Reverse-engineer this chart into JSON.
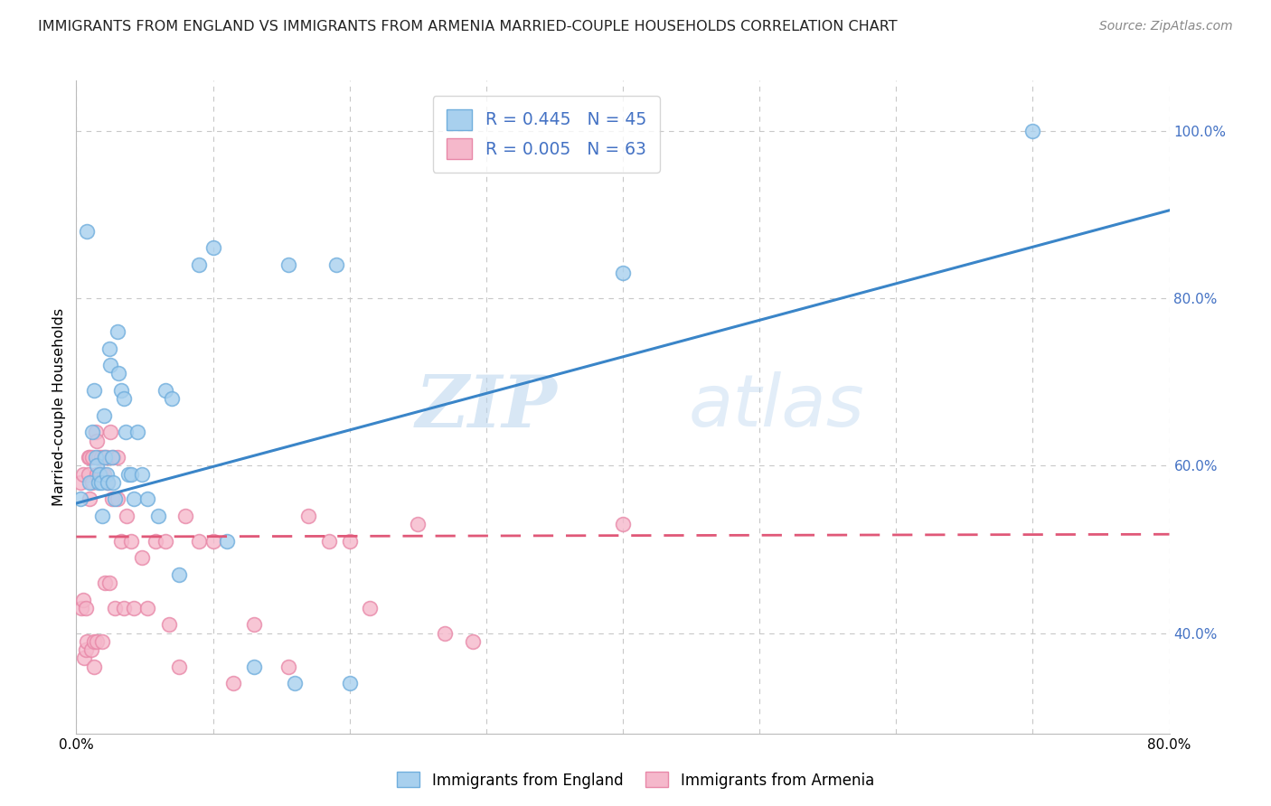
{
  "title": "IMMIGRANTS FROM ENGLAND VS IMMIGRANTS FROM ARMENIA MARRIED-COUPLE HOUSEHOLDS CORRELATION CHART",
  "source": "Source: ZipAtlas.com",
  "ylabel": "Married-couple Households",
  "xlim": [
    0.0,
    0.8
  ],
  "ylim": [
    0.28,
    1.06
  ],
  "xticks": [
    0.0,
    0.1,
    0.2,
    0.3,
    0.4,
    0.5,
    0.6,
    0.7,
    0.8
  ],
  "xticklabels": [
    "0.0%",
    "",
    "",
    "",
    "",
    "",
    "",
    "",
    "80.0%"
  ],
  "yticks": [
    0.4,
    0.6,
    0.8,
    1.0
  ],
  "yticklabels": [
    "40.0%",
    "60.0%",
    "80.0%",
    "100.0%"
  ],
  "england_color": "#A8D0EE",
  "england_edge": "#70AEDD",
  "armenia_color": "#F5B8CB",
  "armenia_edge": "#E888A8",
  "england_line_color": "#3A85C8",
  "armenia_line_color": "#E05878",
  "R_england": 0.445,
  "N_england": 45,
  "R_armenia": 0.005,
  "N_armenia": 63,
  "watermark_zip": "ZIP",
  "watermark_atlas": "atlas",
  "eng_line_x0": 0.0,
  "eng_line_y0": 0.555,
  "eng_line_x1": 0.8,
  "eng_line_y1": 0.905,
  "arm_line_x0": 0.0,
  "arm_line_y0": 0.515,
  "arm_line_x1": 0.8,
  "arm_line_y1": 0.518,
  "england_x": [
    0.003,
    0.008,
    0.01,
    0.012,
    0.013,
    0.014,
    0.015,
    0.016,
    0.017,
    0.018,
    0.019,
    0.02,
    0.021,
    0.022,
    0.023,
    0.024,
    0.025,
    0.026,
    0.027,
    0.028,
    0.03,
    0.031,
    0.033,
    0.035,
    0.036,
    0.038,
    0.04,
    0.042,
    0.045,
    0.048,
    0.052,
    0.06,
    0.065,
    0.07,
    0.075,
    0.09,
    0.1,
    0.11,
    0.13,
    0.155,
    0.16,
    0.19,
    0.2,
    0.4,
    0.7
  ],
  "england_y": [
    0.56,
    0.88,
    0.58,
    0.64,
    0.69,
    0.61,
    0.6,
    0.58,
    0.59,
    0.58,
    0.54,
    0.66,
    0.61,
    0.59,
    0.58,
    0.74,
    0.72,
    0.61,
    0.58,
    0.56,
    0.76,
    0.71,
    0.69,
    0.68,
    0.64,
    0.59,
    0.59,
    0.56,
    0.64,
    0.59,
    0.56,
    0.54,
    0.69,
    0.68,
    0.47,
    0.84,
    0.86,
    0.51,
    0.36,
    0.84,
    0.34,
    0.84,
    0.34,
    0.83,
    1.0
  ],
  "armenia_x": [
    0.003,
    0.004,
    0.005,
    0.005,
    0.006,
    0.007,
    0.007,
    0.008,
    0.009,
    0.009,
    0.01,
    0.01,
    0.011,
    0.012,
    0.012,
    0.013,
    0.013,
    0.014,
    0.015,
    0.015,
    0.015,
    0.016,
    0.017,
    0.018,
    0.018,
    0.019,
    0.02,
    0.02,
    0.021,
    0.022,
    0.023,
    0.024,
    0.025,
    0.026,
    0.027,
    0.028,
    0.03,
    0.03,
    0.033,
    0.035,
    0.037,
    0.04,
    0.042,
    0.048,
    0.052,
    0.058,
    0.065,
    0.068,
    0.075,
    0.08,
    0.09,
    0.1,
    0.115,
    0.13,
    0.155,
    0.17,
    0.185,
    0.2,
    0.215,
    0.25,
    0.27,
    0.29,
    0.4
  ],
  "armenia_y": [
    0.58,
    0.43,
    0.59,
    0.44,
    0.37,
    0.43,
    0.38,
    0.39,
    0.61,
    0.59,
    0.61,
    0.56,
    0.38,
    0.61,
    0.58,
    0.39,
    0.36,
    0.64,
    0.63,
    0.59,
    0.39,
    0.61,
    0.59,
    0.61,
    0.59,
    0.39,
    0.61,
    0.59,
    0.46,
    0.61,
    0.58,
    0.46,
    0.64,
    0.56,
    0.61,
    0.43,
    0.61,
    0.56,
    0.51,
    0.43,
    0.54,
    0.51,
    0.43,
    0.49,
    0.43,
    0.51,
    0.51,
    0.41,
    0.36,
    0.54,
    0.51,
    0.51,
    0.34,
    0.41,
    0.36,
    0.54,
    0.51,
    0.51,
    0.43,
    0.53,
    0.4,
    0.39,
    0.53
  ]
}
